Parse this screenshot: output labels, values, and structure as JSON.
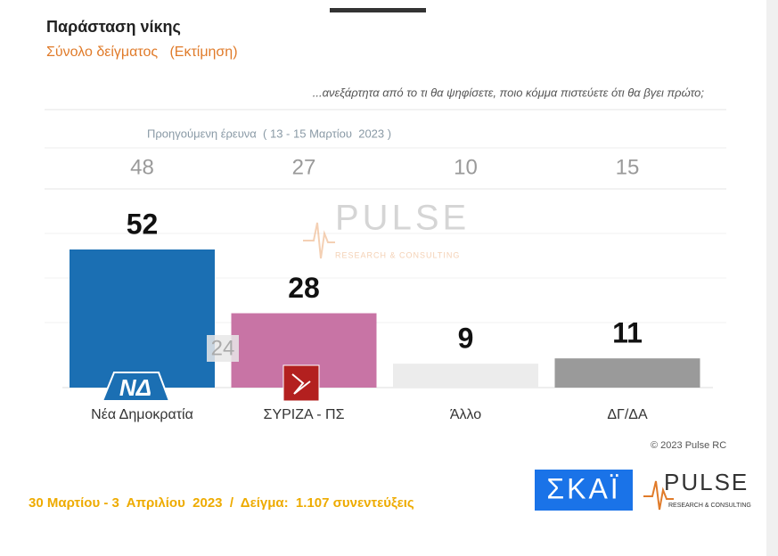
{
  "chart_data": {
    "type": "bar",
    "title": "Παράσταση νίκης",
    "subtitle": "Σύνολο δείγματος   (Εκτίμηση)",
    "question": "...ανεξάρτητα από το τι θα ψηφίσετε, ποιο κόμμα πιστεύετε ότι θα βγει πρώτο;",
    "previous_label": "Προηγούμενη έρευνα  ( 13 - 15 Μαρτίου  2023 )",
    "categories": [
      "Νέα Δημοκρατία",
      "ΣΥΡΙΖΑ - ΠΣ",
      "Άλλο",
      "ΔΓ/ΔΑ"
    ],
    "values": [
      52,
      28,
      9,
      11
    ],
    "previous_values": [
      48,
      27,
      10,
      15
    ],
    "colors": [
      "#1b6fb3",
      "#c874a5",
      "#ececec",
      "#9a9a9a"
    ],
    "lead": 24,
    "party_logo": "ΝΔ",
    "copyright": "© 2023 Pulse RC",
    "footer": "30 Μαρτίου - 3  Απριλίου  2023  /  Δείγμα:  1.107 συνεντεύξεις",
    "broadcaster": "ΣΚΑΪ",
    "pollster": {
      "name": "PULSE",
      "tagline": "RESEARCH & CONSULTING"
    }
  }
}
